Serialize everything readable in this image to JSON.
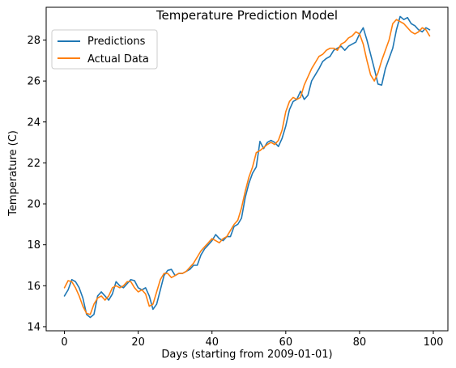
{
  "chart_data": {
    "type": "line",
    "title": "Temperature Prediction Model",
    "xlabel": "Days (starting from 2009-01-01)",
    "ylabel": "Temperature (C)",
    "xlim": [
      -4.95,
      103.95
    ],
    "ylim": [
      13.8,
      29.6
    ],
    "xticks": [
      0,
      20,
      40,
      60,
      80,
      100
    ],
    "yticks": [
      14,
      16,
      18,
      20,
      22,
      24,
      26,
      28
    ],
    "grid": false,
    "legend_position": "top-left",
    "x": [
      0,
      1,
      2,
      3,
      4,
      5,
      6,
      7,
      8,
      9,
      10,
      11,
      12,
      13,
      14,
      15,
      16,
      17,
      18,
      19,
      20,
      21,
      22,
      23,
      24,
      25,
      26,
      27,
      28,
      29,
      30,
      31,
      32,
      33,
      34,
      35,
      36,
      37,
      38,
      39,
      40,
      41,
      42,
      43,
      44,
      45,
      46,
      47,
      48,
      49,
      50,
      51,
      52,
      53,
      54,
      55,
      56,
      57,
      58,
      59,
      60,
      61,
      62,
      63,
      64,
      65,
      66,
      67,
      68,
      69,
      70,
      71,
      72,
      73,
      74,
      75,
      76,
      77,
      78,
      79,
      80,
      81,
      82,
      83,
      84,
      85,
      86,
      87,
      88,
      89,
      90,
      91,
      92,
      93,
      94,
      95,
      96,
      97,
      98,
      99
    ],
    "series": [
      {
        "name": "Predictions",
        "color": "#1f77b4",
        "values": [
          15.5,
          15.8,
          16.3,
          16.2,
          15.9,
          15.4,
          14.6,
          14.45,
          14.6,
          15.5,
          15.7,
          15.5,
          15.3,
          15.6,
          16.2,
          16.0,
          15.9,
          16.1,
          16.3,
          16.25,
          15.9,
          15.8,
          15.9,
          15.5,
          14.85,
          15.1,
          15.8,
          16.5,
          16.75,
          16.8,
          16.5,
          16.6,
          16.6,
          16.7,
          16.8,
          17.0,
          17.0,
          17.5,
          17.8,
          18.0,
          18.2,
          18.5,
          18.3,
          18.2,
          18.4,
          18.4,
          18.9,
          19.0,
          19.3,
          20.3,
          21.0,
          21.5,
          21.8,
          23.05,
          22.7,
          23.0,
          23.1,
          23.0,
          22.8,
          23.2,
          23.8,
          24.6,
          25.0,
          25.1,
          25.5,
          25.1,
          25.3,
          26.0,
          26.3,
          26.6,
          26.95,
          27.1,
          27.2,
          27.5,
          27.6,
          27.7,
          27.5,
          27.7,
          27.8,
          27.9,
          28.3,
          28.6,
          28.0,
          27.3,
          26.6,
          25.85,
          25.8,
          26.6,
          27.1,
          27.6,
          28.5,
          29.15,
          29.0,
          29.1,
          28.8,
          28.7,
          28.5,
          28.4,
          28.6,
          28.5
        ]
      },
      {
        "name": "Actual Data",
        "color": "#ff7f0e",
        "values": [
          15.9,
          16.25,
          16.2,
          15.9,
          15.5,
          15.0,
          14.65,
          14.6,
          15.1,
          15.4,
          15.5,
          15.3,
          15.5,
          15.9,
          16.0,
          15.9,
          16.0,
          16.2,
          16.2,
          15.9,
          15.7,
          15.8,
          15.6,
          15.0,
          15.1,
          15.7,
          16.3,
          16.6,
          16.6,
          16.4,
          16.5,
          16.6,
          16.6,
          16.7,
          16.9,
          17.1,
          17.4,
          17.7,
          17.9,
          18.1,
          18.3,
          18.2,
          18.1,
          18.3,
          18.4,
          18.7,
          19.0,
          19.2,
          19.8,
          20.6,
          21.3,
          21.8,
          22.5,
          22.6,
          22.75,
          22.9,
          23.0,
          22.9,
          23.1,
          23.6,
          24.5,
          25.0,
          25.2,
          25.1,
          25.2,
          25.8,
          26.2,
          26.6,
          26.9,
          27.2,
          27.3,
          27.5,
          27.6,
          27.6,
          27.5,
          27.8,
          27.9,
          28.1,
          28.2,
          28.4,
          28.3,
          27.8,
          27.0,
          26.3,
          26.0,
          26.4,
          27.0,
          27.5,
          28.0,
          28.8,
          29.0,
          28.9,
          28.8,
          28.6,
          28.4,
          28.3,
          28.4,
          28.6,
          28.5,
          28.2
        ]
      }
    ]
  }
}
